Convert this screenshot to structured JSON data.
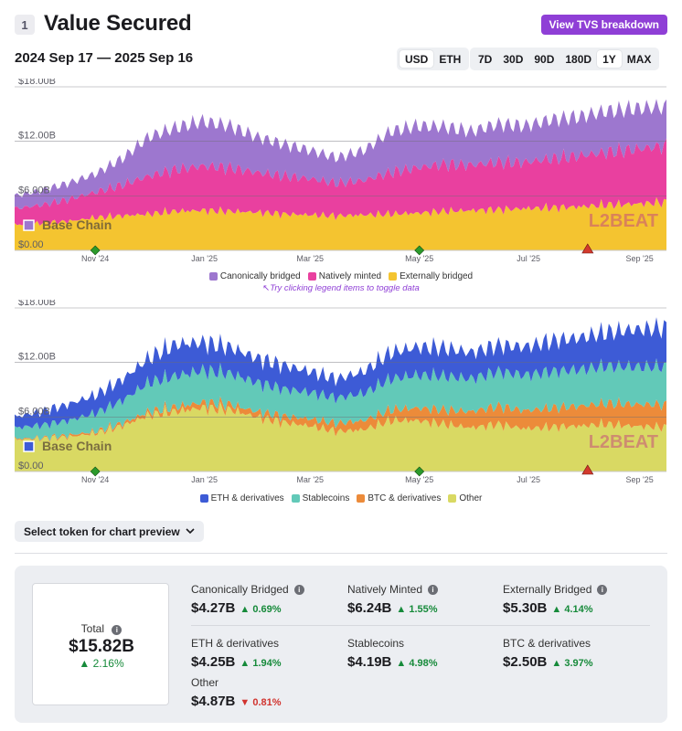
{
  "header": {
    "section_number": "1",
    "title": "Value Secured",
    "tvs_button": "View TVS breakdown",
    "range_label": "2024 Sep 17 — 2025 Sep 16"
  },
  "currency_toggle": {
    "options": [
      "USD",
      "ETH"
    ],
    "selected": "USD"
  },
  "range_toggle": {
    "options": [
      "7D",
      "30D",
      "90D",
      "180D",
      "1Y",
      "MAX"
    ],
    "selected": "1Y"
  },
  "chart_data": [
    {
      "type": "area",
      "stacked": true,
      "chain_label": "Base Chain",
      "watermark": "L2BEAT",
      "y_ticks": [
        "$0.00",
        "$6.00B",
        "$12.00B",
        "$18.00B"
      ],
      "ylim": [
        0,
        18
      ],
      "x_ticks": [
        "Nov '24",
        "Jan '25",
        "Mar '25",
        "May '25",
        "Jul '25",
        "Sep '25"
      ],
      "x_tick_days": [
        45,
        106,
        165,
        226,
        287,
        349
      ],
      "x_days": [
        0,
        15,
        30,
        45,
        60,
        75,
        90,
        105,
        120,
        135,
        150,
        165,
        180,
        195,
        210,
        225,
        240,
        255,
        270,
        285,
        300,
        315,
        330,
        345,
        364
      ],
      "series": [
        {
          "name": "Externally bridged",
          "color": "#f4c430",
          "values": [
            2.8,
            3.0,
            3.2,
            3.6,
            3.8,
            4.0,
            4.3,
            4.4,
            4.3,
            4.2,
            4.0,
            3.9,
            3.8,
            3.9,
            4.0,
            4.1,
            4.3,
            4.4,
            4.5,
            4.6,
            4.7,
            4.8,
            5.0,
            5.1,
            5.3
          ]
        },
        {
          "name": "Natively minted",
          "color": "#e9409f",
          "values": [
            1.8,
            2.0,
            2.4,
            2.8,
            3.4,
            4.2,
            4.6,
            4.9,
            4.8,
            4.4,
            4.2,
            4.0,
            3.6,
            3.8,
            4.6,
            5.0,
            5.2,
            5.0,
            5.2,
            5.1,
            5.4,
            5.6,
            5.8,
            6.0,
            6.24
          ]
        },
        {
          "name": "Canonically bridged",
          "color": "#9d77cf",
          "values": [
            1.4,
            1.6,
            1.8,
            2.0,
            2.9,
            4.3,
            4.6,
            4.9,
            4.6,
            3.9,
            3.5,
            3.1,
            2.8,
            3.3,
            4.5,
            4.6,
            4.1,
            3.7,
            4.2,
            4.0,
            4.3,
            4.3,
            4.5,
            4.5,
            4.27
          ]
        }
      ],
      "events": [
        {
          "day": 45,
          "kind": "diamond",
          "color": "#2b9a2b"
        },
        {
          "day": 226,
          "kind": "diamond",
          "color": "#2b9a2b"
        },
        {
          "day": 320,
          "kind": "triangle",
          "color": "#d33a2c"
        }
      ]
    },
    {
      "type": "area",
      "stacked": true,
      "chain_label": "Base Chain",
      "watermark": "L2BEAT",
      "y_ticks": [
        "$0.00",
        "$6.00B",
        "$12.00B",
        "$18.00B"
      ],
      "ylim": [
        0,
        18
      ],
      "x_ticks": [
        "Nov '24",
        "Jan '25",
        "Mar '25",
        "May '25",
        "Jul '25",
        "Sep '25"
      ],
      "x_tick_days": [
        45,
        106,
        165,
        226,
        287,
        349
      ],
      "x_days": [
        0,
        15,
        30,
        45,
        60,
        75,
        90,
        105,
        120,
        135,
        150,
        165,
        180,
        195,
        210,
        225,
        240,
        255,
        270,
        285,
        300,
        315,
        330,
        345,
        364
      ],
      "series": [
        {
          "name": "Other",
          "color": "#d9d963",
          "values": [
            3.5,
            3.6,
            3.8,
            4.2,
            5.0,
            6.2,
            6.6,
            7.0,
            6.8,
            6.0,
            5.4,
            5.0,
            4.4,
            4.6,
            5.6,
            5.6,
            5.2,
            4.8,
            5.2,
            4.7,
            4.9,
            5.0,
            5.2,
            5.0,
            4.87
          ]
        },
        {
          "name": "BTC & derivatives",
          "color": "#ec8b3a",
          "values": [
            0.1,
            0.1,
            0.2,
            0.2,
            0.3,
            0.4,
            0.5,
            0.6,
            0.6,
            0.6,
            0.7,
            0.8,
            0.9,
            1.0,
            1.2,
            1.4,
            1.6,
            1.8,
            2.0,
            2.0,
            2.1,
            2.2,
            2.3,
            2.4,
            2.5
          ]
        },
        {
          "name": "Stablecoins",
          "color": "#62c9b8",
          "values": [
            1.2,
            1.4,
            1.6,
            2.0,
            2.5,
            3.2,
            3.4,
            3.5,
            3.4,
            3.2,
            3.0,
            2.9,
            2.8,
            3.0,
            3.4,
            3.6,
            3.7,
            3.6,
            3.8,
            3.9,
            4.0,
            4.0,
            4.1,
            4.1,
            4.19
          ]
        },
        {
          "name": "ETH & derivatives",
          "color": "#3d5bd6",
          "values": [
            1.2,
            1.5,
            1.8,
            2.0,
            2.3,
            2.7,
            3.5,
            3.1,
            2.9,
            2.7,
            2.6,
            2.3,
            2.1,
            2.4,
            2.9,
            3.1,
            3.1,
            2.9,
            2.9,
            3.1,
            3.4,
            3.5,
            3.7,
            4.1,
            4.25
          ]
        }
      ],
      "events": [
        {
          "day": 45,
          "kind": "diamond",
          "color": "#2b9a2b"
        },
        {
          "day": 226,
          "kind": "diamond",
          "color": "#2b9a2b"
        },
        {
          "day": 320,
          "kind": "triangle",
          "color": "#d33a2c"
        }
      ]
    }
  ],
  "legend1": {
    "items": [
      {
        "label": "Canonically bridged",
        "color": "#9d77cf"
      },
      {
        "label": "Natively minted",
        "color": "#e9409f"
      },
      {
        "label": "Externally bridged",
        "color": "#f4c430"
      }
    ],
    "hint": "Try clicking legend items to toggle data"
  },
  "legend2": {
    "items": [
      {
        "label": "ETH & derivatives",
        "color": "#3d5bd6"
      },
      {
        "label": "Stablecoins",
        "color": "#62c9b8"
      },
      {
        "label": "BTC & derivatives",
        "color": "#ec8b3a"
      },
      {
        "label": "Other",
        "color": "#d9d963"
      }
    ]
  },
  "token_select": {
    "label": "Select token for chart preview"
  },
  "stats": {
    "total": {
      "label": "Total",
      "value": "$15.82B",
      "change": "2.16%",
      "direction": "up"
    },
    "items": [
      {
        "label": "Canonically Bridged",
        "value": "$4.27B",
        "change": "0.69%",
        "direction": "up",
        "info": true
      },
      {
        "label": "Natively Minted",
        "value": "$6.24B",
        "change": "1.55%",
        "direction": "up",
        "info": true
      },
      {
        "label": "Externally Bridged",
        "value": "$5.30B",
        "change": "4.14%",
        "direction": "up",
        "info": true
      },
      {
        "label": "ETH & derivatives",
        "value": "$4.25B",
        "change": "1.94%",
        "direction": "up",
        "info": false
      },
      {
        "label": "Stablecoins",
        "value": "$4.19B",
        "change": "4.98%",
        "direction": "up",
        "info": false
      },
      {
        "label": "BTC & derivatives",
        "value": "$2.50B",
        "change": "3.97%",
        "direction": "up",
        "info": false
      },
      {
        "label": "Other",
        "value": "$4.87B",
        "change": "0.81%",
        "direction": "down",
        "info": false
      }
    ]
  }
}
